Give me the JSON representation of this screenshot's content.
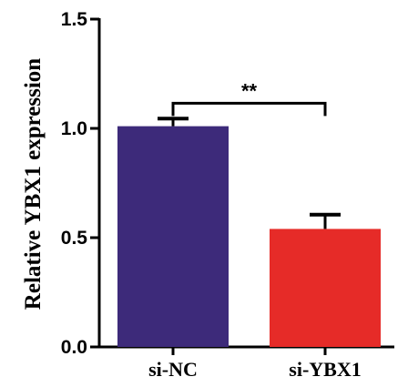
{
  "chart_data": {
    "type": "bar",
    "title": "",
    "xlabel": "",
    "ylabel": "Relative YBX1 expression",
    "categories": [
      "si-NC",
      "si-YBX1"
    ],
    "values": [
      1.01,
      0.54
    ],
    "error_upper": [
      0.035,
      0.065
    ],
    "ylim": [
      0,
      1.5
    ],
    "yticks": [
      "0.0",
      "0.5",
      "1.0",
      "1.5"
    ],
    "bar_colors": [
      "#3d2a7a",
      "#e62b28"
    ],
    "significance": {
      "label": "**",
      "between": [
        "si-NC",
        "si-YBX1"
      ],
      "level": 1.115
    },
    "grid": false,
    "legend": "none"
  }
}
